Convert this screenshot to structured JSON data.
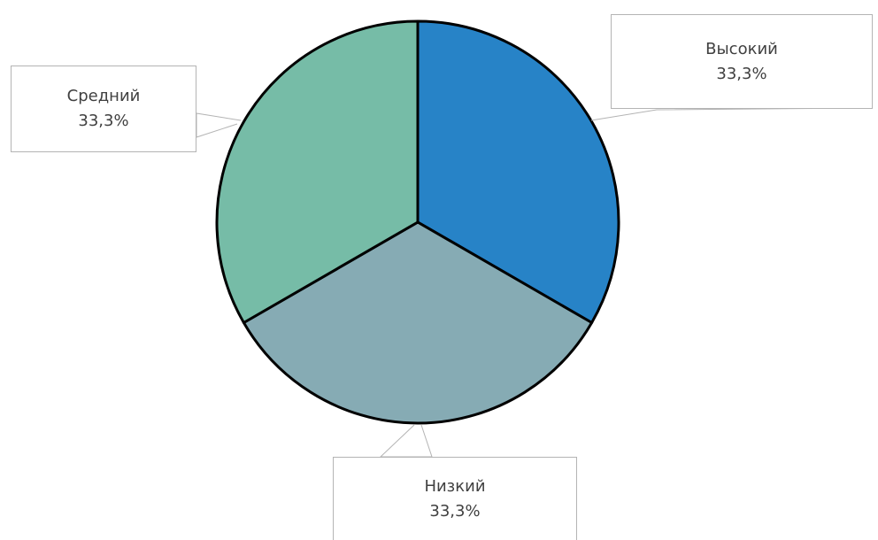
{
  "chart_data": {
    "type": "pie",
    "slices": [
      {
        "label": "Высокий",
        "value": 33.3,
        "value_label": "33,3%",
        "color": "#2783c7"
      },
      {
        "label": "Низкий",
        "value": 33.3,
        "value_label": "33,3%",
        "color": "#86abb4"
      },
      {
        "label": "Средний",
        "value": 33.3,
        "value_label": "33,3%",
        "color": "#76bca7"
      }
    ],
    "start_angle_deg": 0,
    "direction": "clockwise",
    "edge_color": "#000000",
    "data_label_style": "callout"
  }
}
